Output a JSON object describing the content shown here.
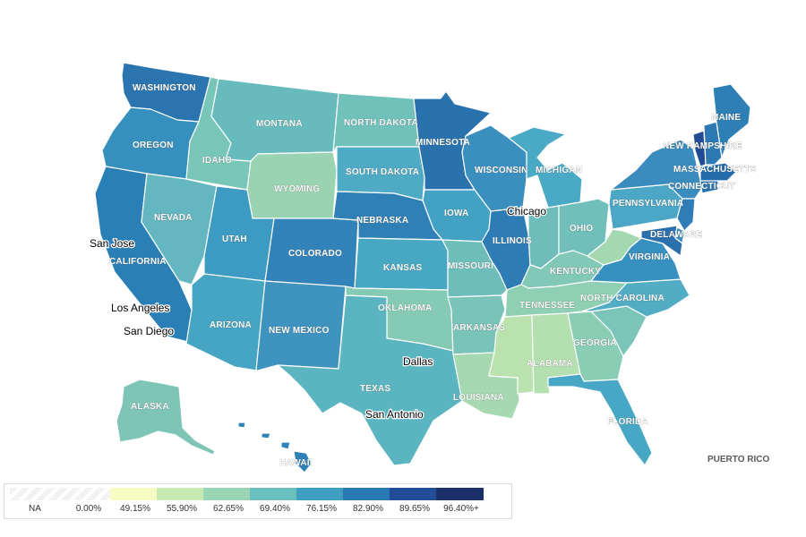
{
  "map": {
    "states": [
      {
        "id": "WA",
        "label": "WASHINGTON",
        "color": "#2a74b0"
      },
      {
        "id": "OR",
        "label": "OREGON",
        "color": "#3590bd"
      },
      {
        "id": "CA",
        "label": "CALIFORNIA",
        "color": "#2a7fb7"
      },
      {
        "id": "ID",
        "label": "IDAHO",
        "color": "#78c6b8"
      },
      {
        "id": "NV",
        "label": "NEVADA",
        "color": "#64b7c0"
      },
      {
        "id": "MT",
        "label": "MONTANA",
        "color": "#67bbbc"
      },
      {
        "id": "WY",
        "label": "WYOMING",
        "color": "#99d3b2"
      },
      {
        "id": "UT",
        "label": "UTAH",
        "color": "#3d9bc3"
      },
      {
        "id": "CO",
        "label": "COLORADO",
        "color": "#3283b9"
      },
      {
        "id": "AZ",
        "label": "ARIZONA",
        "color": "#47a5c4"
      },
      {
        "id": "NM",
        "label": "NEW MEXICO",
        "color": "#3f93bf"
      },
      {
        "id": "ND",
        "label": "NORTH DAKOTA",
        "color": "#70c1b9"
      },
      {
        "id": "SD",
        "label": "SOUTH DAKOTA",
        "color": "#4eaac5"
      },
      {
        "id": "NE",
        "label": "NEBRASKA",
        "color": "#2f80b6"
      },
      {
        "id": "KS",
        "label": "KANSAS",
        "color": "#48a8c4"
      },
      {
        "id": "OK",
        "label": "OKLAHOMA",
        "color": "#84cab5"
      },
      {
        "id": "TX",
        "label": "TEXAS",
        "color": "#5bb5c0"
      },
      {
        "id": "MN",
        "label": "MINNESOTA",
        "color": "#2a72ad"
      },
      {
        "id": "IA",
        "label": "IOWA",
        "color": "#43a1c4"
      },
      {
        "id": "MO",
        "label": "MISSOURI",
        "color": "#6dbdbb"
      },
      {
        "id": "AR",
        "label": "ARKANSAS",
        "color": "#79c3b9"
      },
      {
        "id": "LA",
        "label": "LOUISIANA",
        "color": "#a6d9b1"
      },
      {
        "id": "WI",
        "label": "WISCONSIN",
        "color": "#3b8fbf"
      },
      {
        "id": "IL",
        "label": "ILLINOIS",
        "color": "#2d7cb6"
      },
      {
        "id": "MI",
        "label": "MICHIGAN",
        "color": "#4aa9c5"
      },
      {
        "id": "IN",
        "label": "",
        "color": "#6ebdbb"
      },
      {
        "id": "OH",
        "label": "OHIO",
        "color": "#71bfba"
      },
      {
        "id": "KY",
        "label": "KENTUCKY",
        "color": "#82c8b6"
      },
      {
        "id": "TN",
        "label": "TENNESSEE",
        "color": "#8fcfb4"
      },
      {
        "id": "MS",
        "label": "",
        "color": "#b9e2ae"
      },
      {
        "id": "AL",
        "label": "ALABAMA",
        "color": "#b4dfb0"
      },
      {
        "id": "GA",
        "label": "GEORGIA",
        "color": "#8acdb5"
      },
      {
        "id": "FL",
        "label": "FLORIDA",
        "color": "#48a7c4"
      },
      {
        "id": "SC",
        "label": "",
        "color": "#7bc5b8"
      },
      {
        "id": "NC",
        "label": "NORTH CAROLINA",
        "color": "#52adc4"
      },
      {
        "id": "VA",
        "label": "VIRGINIA",
        "color": "#3790c0"
      },
      {
        "id": "WV",
        "label": "",
        "color": "#a4d8b1"
      },
      {
        "id": "PA",
        "label": "PENNSYLVANIA",
        "color": "#4ba7c5"
      },
      {
        "id": "NY",
        "label": "",
        "color": "#3a8bbe"
      },
      {
        "id": "NJ",
        "label": "",
        "color": "#2f7cb6"
      },
      {
        "id": "DE",
        "label": "DELAWARE",
        "color": "#3a8dbe"
      },
      {
        "id": "MD",
        "label": "",
        "color": "#2c6fad"
      },
      {
        "id": "CT",
        "label": "CONNECTICUT",
        "color": "#2a73b1"
      },
      {
        "id": "MA",
        "label": "MASSACHUSETTS",
        "color": "#236bab"
      },
      {
        "id": "VT",
        "label": "",
        "color": "#224b96"
      },
      {
        "id": "NH",
        "label": "NEW HAMPSHIRE",
        "color": "#2d79b4"
      },
      {
        "id": "ME",
        "label": "MAINE",
        "color": "#2f7fb7"
      },
      {
        "id": "AK",
        "label": "ALASKA",
        "color": "#7fc5b6"
      },
      {
        "id": "HI",
        "label": "HAWAII",
        "color": "#2f82b8"
      }
    ],
    "cities": [
      "Chicago",
      "San Jose",
      "Los Angeles",
      "San Diego",
      "Dallas",
      "San Antonio"
    ],
    "territory_label": "PUERTO RICO"
  },
  "legend": {
    "na_label": "NA",
    "ticks": [
      "0.00%",
      "49.15%",
      "55.90%",
      "62.65%",
      "69.40%",
      "76.15%",
      "82.90%",
      "89.65%",
      "96.40%+"
    ],
    "colors": [
      "#f7fcc4",
      "#c9e9b4",
      "#9ad5b6",
      "#6abebd",
      "#3f9fc3",
      "#2a79b5",
      "#234c98",
      "#1b2f6b"
    ]
  }
}
